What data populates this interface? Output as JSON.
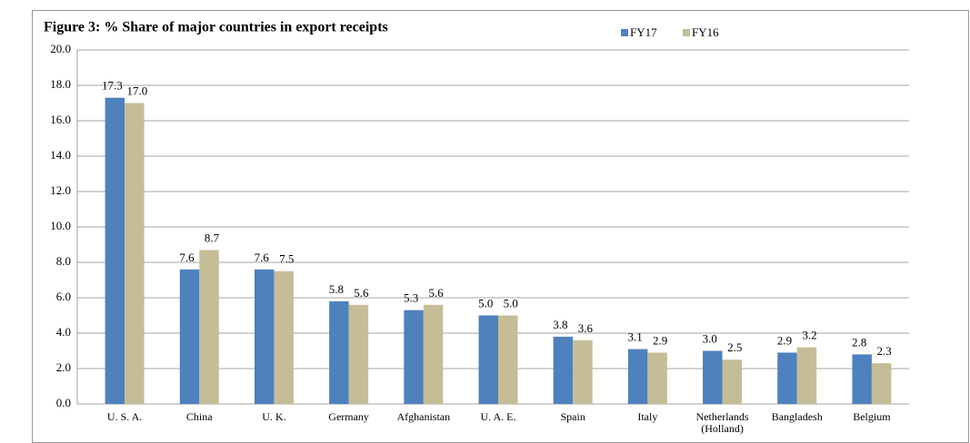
{
  "chart_data": {
    "type": "bar",
    "title": "Figure 3: % Share of major countries in export receipts",
    "categories": [
      "U. S. A.",
      "China",
      "U. K.",
      "Germany",
      "Afghanistan",
      "U. A. E.",
      "Spain",
      "Italy",
      "Netherlands (Holland)",
      "Bangladesh",
      "Belgium"
    ],
    "series": [
      {
        "name": "FY17",
        "color": "#4f81bd",
        "values": [
          17.3,
          7.6,
          7.6,
          5.8,
          5.3,
          5.0,
          3.8,
          3.1,
          3.0,
          2.9,
          2.8
        ],
        "value_labels": [
          "17.3",
          "7.6",
          "7.6",
          "5.8",
          "5.3",
          "5.0",
          "3.8",
          "3.1",
          "3.0",
          "2.9",
          "2.8"
        ]
      },
      {
        "name": "FY16",
        "color": "#c4bd97",
        "values": [
          17.0,
          8.7,
          7.5,
          5.6,
          5.6,
          5.0,
          3.6,
          2.9,
          2.5,
          3.2,
          2.3
        ],
        "value_labels": [
          "17.0",
          "8.7",
          "7.5",
          "5.6",
          "5.6",
          "5.0",
          "3.6",
          "2.9",
          "2.5",
          "3.2",
          "2.3"
        ]
      }
    ],
    "ylim": [
      0,
      20
    ],
    "yticks": [
      {
        "value": 0,
        "label": "0.0"
      },
      {
        "value": 2,
        "label": "2.0"
      },
      {
        "value": 4,
        "label": "4.0"
      },
      {
        "value": 6,
        "label": "6.0"
      },
      {
        "value": 8,
        "label": "8.0"
      },
      {
        "value": 10,
        "label": "10.0"
      },
      {
        "value": 12,
        "label": "12.0"
      },
      {
        "value": 14,
        "label": "14.0"
      },
      {
        "value": 16,
        "label": "16.0"
      },
      {
        "value": 18,
        "label": "18.0"
      },
      {
        "value": 20,
        "label": "20.0"
      }
    ],
    "grid": true,
    "legend": "top"
  }
}
